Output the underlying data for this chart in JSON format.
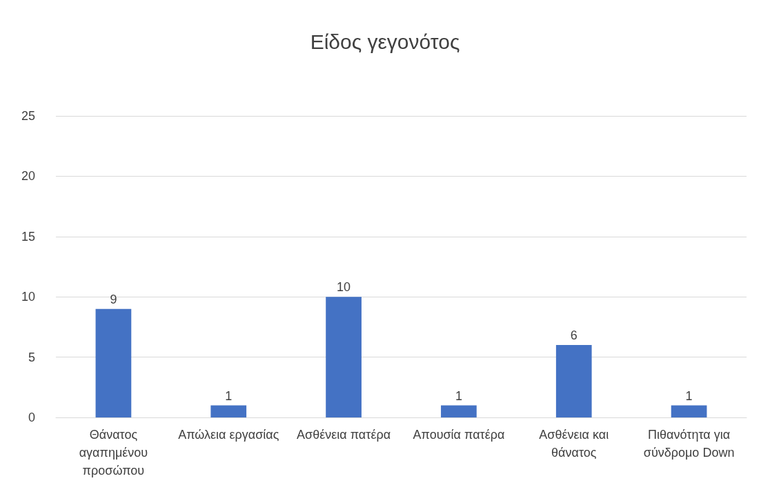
{
  "chart_data": {
    "type": "bar",
    "title": "Είδος γεγονότος",
    "categories": [
      "Θάνατος αγαπημένου προσώπου",
      "Απώλεια εργασίας",
      "Ασθένεια πατέρα",
      "Απουσία πατέρα",
      "Ασθένεια και θάνατος",
      "Πιθανότητα για σύνδρομο Down"
    ],
    "values": [
      9,
      1,
      10,
      1,
      6,
      1
    ],
    "color": "#4472c4",
    "ylim": [
      0,
      25
    ],
    "yticks": [
      0,
      5,
      10,
      15,
      20,
      25
    ],
    "grid": "y",
    "data_labels": true
  }
}
